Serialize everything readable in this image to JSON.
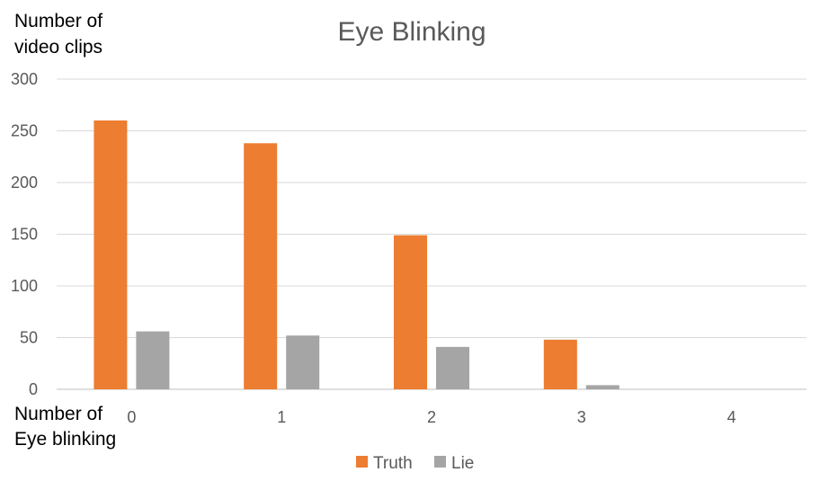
{
  "chart_data": {
    "type": "bar",
    "title": "Eye Blinking",
    "ylabel": [
      "Number of",
      "video clips"
    ],
    "xlabel": [
      "Number of",
      "Eye blinking"
    ],
    "categories": [
      "0",
      "1",
      "2",
      "3",
      "4"
    ],
    "yticks": [
      "0",
      "50",
      "100",
      "150",
      "200",
      "250",
      "300"
    ],
    "ylim": [
      0,
      300
    ],
    "grid": true,
    "legend": "bottom",
    "series": [
      {
        "name": "Truth",
        "color": "#ED7D31",
        "values": [
          260,
          238,
          149,
          48,
          0
        ]
      },
      {
        "name": "Lie",
        "color": "#A5A5A5",
        "values": [
          56,
          52,
          41,
          4,
          0
        ]
      }
    ]
  }
}
